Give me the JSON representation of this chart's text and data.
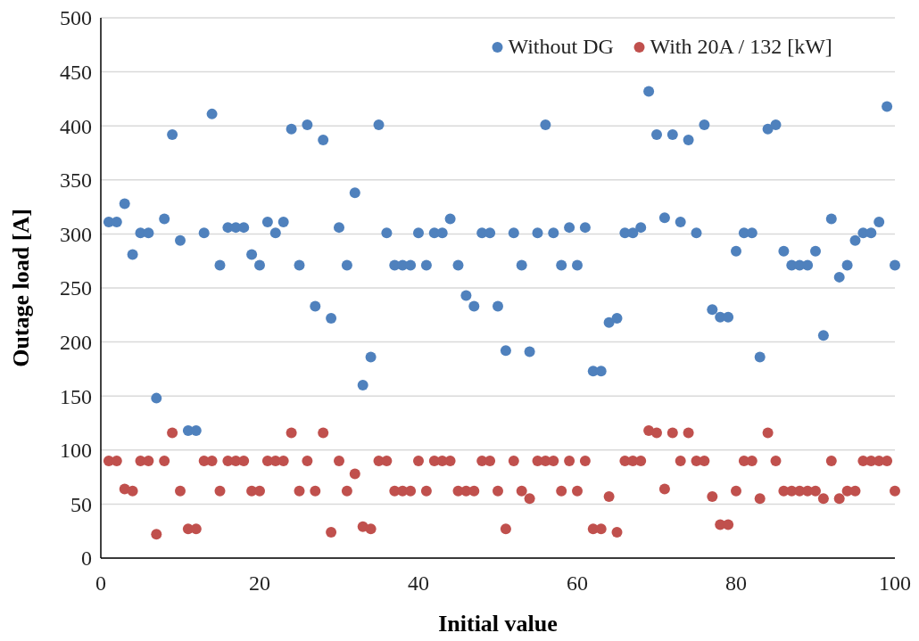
{
  "chart_data": {
    "type": "scatter",
    "xlabel": "Initial value",
    "ylabel": "Outage load [A]",
    "xlim": [
      0,
      100
    ],
    "xticks": [
      0,
      20,
      40,
      60,
      80,
      100
    ],
    "ylim": [
      0,
      500
    ],
    "yticks": [
      0,
      50,
      100,
      150,
      200,
      250,
      300,
      350,
      400,
      450,
      500
    ],
    "grid": "y",
    "legend": "top right",
    "marker": "circle",
    "x": [
      1,
      2,
      3,
      4,
      5,
      6,
      7,
      8,
      9,
      10,
      11,
      12,
      13,
      14,
      15,
      16,
      17,
      18,
      19,
      20,
      21,
      22,
      23,
      24,
      25,
      26,
      27,
      28,
      29,
      30,
      31,
      32,
      33,
      34,
      35,
      36,
      37,
      38,
      39,
      40,
      41,
      42,
      43,
      44,
      45,
      46,
      47,
      48,
      49,
      50,
      51,
      52,
      53,
      54,
      55,
      56,
      57,
      58,
      59,
      60,
      61,
      62,
      63,
      64,
      65,
      66,
      67,
      68,
      69,
      70,
      71,
      72,
      73,
      74,
      75,
      76,
      77,
      78,
      79,
      80,
      81,
      82,
      83,
      84,
      85,
      86,
      87,
      88,
      89,
      90,
      91,
      92,
      93,
      94,
      95,
      96,
      97,
      98,
      99,
      100
    ],
    "series": [
      {
        "name": "Without DG",
        "color": "#4f81bd",
        "values": [
          311,
          311,
          328,
          281,
          301,
          301,
          148,
          314,
          392,
          294,
          118,
          118,
          301,
          411,
          271,
          306,
          306,
          306,
          281,
          271,
          311,
          301,
          311,
          397,
          271,
          401,
          233,
          387,
          222,
          306,
          271,
          338,
          160,
          186,
          401,
          301,
          271,
          271,
          271,
          301,
          271,
          301,
          301,
          314,
          271,
          243,
          233,
          301,
          301,
          233,
          192,
          301,
          271,
          191,
          301,
          401,
          301,
          271,
          306,
          271,
          306,
          173,
          173,
          218,
          222,
          301,
          301,
          306,
          432,
          392,
          315,
          392,
          311,
          387,
          301,
          401,
          230,
          223,
          223,
          284,
          301,
          301,
          186,
          397,
          401,
          284,
          271,
          271,
          271,
          284,
          206,
          314,
          260,
          271,
          294,
          301,
          301,
          311,
          418,
          271
        ]
      },
      {
        "name": "With 20A / 132 [kW]",
        "color": "#c0504d",
        "values": [
          90,
          90,
          64,
          62,
          90,
          90,
          22,
          90,
          116,
          62,
          27,
          27,
          90,
          90,
          62,
          90,
          90,
          90,
          62,
          62,
          90,
          90,
          90,
          116,
          62,
          90,
          62,
          116,
          24,
          90,
          62,
          78,
          29,
          27,
          90,
          90,
          62,
          62,
          62,
          90,
          62,
          90,
          90,
          90,
          62,
          62,
          62,
          90,
          90,
          62,
          27,
          90,
          62,
          55,
          90,
          90,
          90,
          62,
          90,
          62,
          90,
          27,
          27,
          57,
          24,
          90,
          90,
          90,
          118,
          116,
          64,
          116,
          90,
          116,
          90,
          90,
          57,
          31,
          31,
          62,
          90,
          90,
          55,
          116,
          90,
          62,
          62,
          62,
          62,
          62,
          55,
          90,
          55,
          62,
          62,
          90,
          90,
          90,
          90,
          62
        ]
      }
    ]
  }
}
